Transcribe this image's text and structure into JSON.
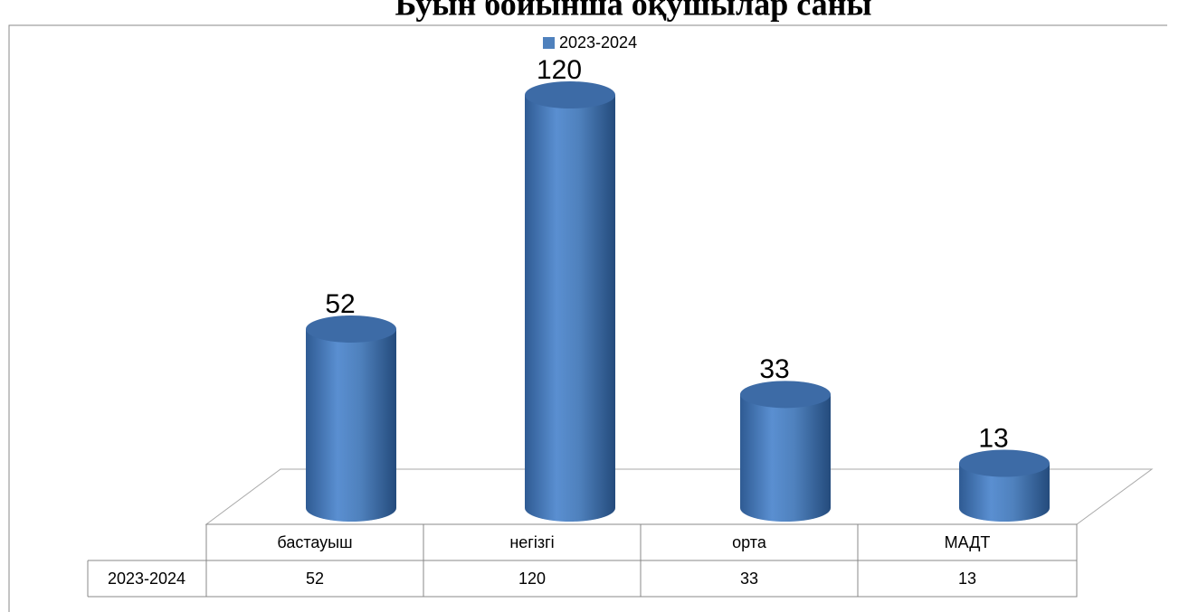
{
  "chart_data": {
    "type": "bar3d",
    "title": "Буын бойынша оқушылар саны",
    "categories": [
      "бастауыш",
      "негізгі",
      "орта",
      "МАДТ"
    ],
    "series": [
      {
        "name": "2023-2024",
        "color": "#4f81bd",
        "values": [
          52,
          120,
          33,
          13
        ]
      }
    ]
  }
}
